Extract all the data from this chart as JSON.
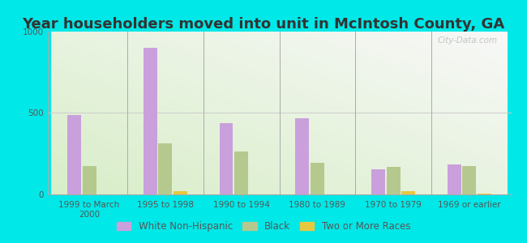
{
  "title": "Year householders moved into unit in McIntosh County, GA",
  "categories": [
    "1999 to March\n2000",
    "1995 to 1998",
    "1990 to 1994",
    "1980 to 1989",
    "1970 to 1979",
    "1969 or earlier"
  ],
  "white_non_hispanic": [
    490,
    900,
    440,
    470,
    155,
    185
  ],
  "black": [
    175,
    315,
    265,
    195,
    170,
    175
  ],
  "two_or_more": [
    0,
    22,
    0,
    0,
    18,
    5
  ],
  "color_white": "#c9a0dc",
  "color_black": "#b5c98e",
  "color_two": "#e8c840",
  "ylim": [
    0,
    1000
  ],
  "yticks": [
    0,
    500,
    1000
  ],
  "background_outer": "#00e8e8",
  "watermark": "City-Data.com",
  "bar_width": 0.18,
  "title_fontsize": 13,
  "legend_fontsize": 8.5,
  "tick_fontsize": 7.5
}
